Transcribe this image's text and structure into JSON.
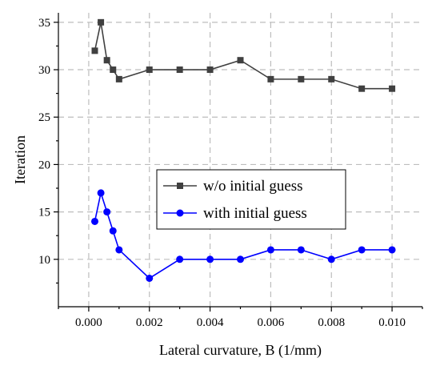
{
  "chart_data": {
    "type": "line",
    "xlabel": "Lateral curvature, B (1/mm)",
    "ylabel": "Iteration",
    "xlim": [
      -0.001,
      0.011
    ],
    "ylim": [
      5,
      36
    ],
    "xticks": [
      "0.000",
      "0.002",
      "0.004",
      "0.006",
      "0.008",
      "0.010"
    ],
    "xtick_values": [
      0.0,
      0.002,
      0.004,
      0.006,
      0.008,
      0.01
    ],
    "yticks": [
      "10",
      "15",
      "20",
      "25",
      "30",
      "35"
    ],
    "ytick_values": [
      10,
      15,
      20,
      25,
      30,
      35
    ],
    "grid": true,
    "legend_position": "center",
    "series": [
      {
        "name": "w/o initial guess",
        "color": "#404040",
        "marker": "square",
        "x": [
          0.0002,
          0.0004,
          0.0006,
          0.0008,
          0.001,
          0.002,
          0.003,
          0.004,
          0.005,
          0.006,
          0.007,
          0.008,
          0.009,
          0.01
        ],
        "y": [
          32,
          35,
          31,
          30,
          29,
          30,
          30,
          30,
          31,
          29,
          29,
          29,
          28,
          28
        ]
      },
      {
        "name": "with initial guess",
        "color": "#0000ff",
        "marker": "circle",
        "x": [
          0.0002,
          0.0004,
          0.0006,
          0.0008,
          0.001,
          0.002,
          0.003,
          0.004,
          0.005,
          0.006,
          0.007,
          0.008,
          0.009,
          0.01
        ],
        "y": [
          14,
          17,
          15,
          13,
          11,
          8,
          10,
          10,
          10,
          11,
          11,
          10,
          11,
          11
        ]
      }
    ]
  }
}
